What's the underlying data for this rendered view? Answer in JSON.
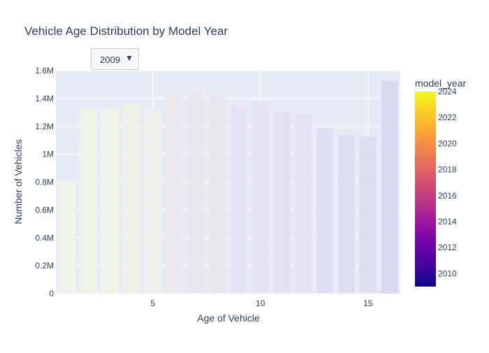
{
  "chart_data": {
    "type": "bar",
    "title": "Vehicle Age Distribution by Model Year",
    "xlabel": "Age of Vehicle",
    "ylabel": "Number of Vehicles",
    "x": [
      1,
      2,
      3,
      4,
      5,
      6,
      7,
      8,
      9,
      10,
      11,
      12,
      13,
      14,
      15,
      16
    ],
    "values": [
      800000,
      1330000,
      1320000,
      1360000,
      1310000,
      1440000,
      1460000,
      1440000,
      1360000,
      1380000,
      1310000,
      1290000,
      1190000,
      1140000,
      1130000,
      1530000
    ],
    "xlim": [
      0.5,
      16.5
    ],
    "ylim": [
      0,
      1600000
    ],
    "x_ticks": [
      5,
      10,
      15
    ],
    "y_ticks": [
      0,
      200000,
      400000,
      600000,
      800000,
      1000000,
      1200000,
      1400000,
      1600000
    ],
    "y_tick_labels": [
      "0",
      "0.2M",
      "0.4M",
      "0.6M",
      "0.8M",
      "1M",
      "1.2M",
      "1.4M",
      "1.6M"
    ],
    "grid": true,
    "bar_colors": [
      "#eef3e6",
      "#eef3e6",
      "#eef3e6",
      "#eef0e6",
      "#eeefe8",
      "#ece8ed",
      "#ebe7ee",
      "#ebe7ee",
      "#e6e2f3",
      "#e4e1f3",
      "#e3e1f3",
      "#e3e1f3",
      "#e0def4",
      "#dfddf4",
      "#dfddf4",
      "#d8daf1"
    ],
    "colorbar": {
      "title": "model_year",
      "min": 2009,
      "max": 2024,
      "tick_values": [
        2010,
        2012,
        2014,
        2016,
        2018,
        2020,
        2022,
        2024
      ],
      "tick_labels": [
        "2010",
        "2012",
        "2014",
        "2016",
        "2018",
        "2020",
        "2022",
        "2024"
      ],
      "colors": [
        "#0d0887",
        "#46039f",
        "#7201a8",
        "#9c179e",
        "#bd3786",
        "#d8576b",
        "#ed7953",
        "#fb9f3a",
        "#fdca26",
        "#f0f921"
      ]
    }
  },
  "dropdown": {
    "selected": "2009",
    "arrow": "▼"
  },
  "colors": {
    "plot_bg": "#e5ecf6",
    "grid": "#ffffff",
    "text": "#2a3f5f"
  }
}
